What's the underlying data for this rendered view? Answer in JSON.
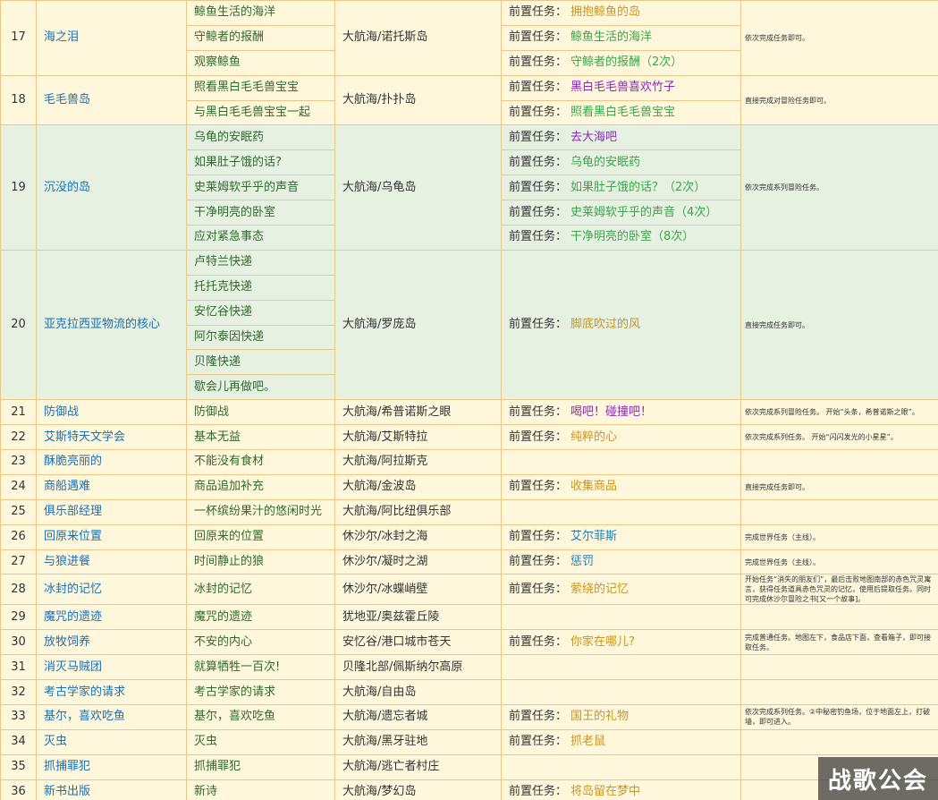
{
  "table": {
    "rows": [
      {
        "no": 17,
        "name": "海之泪",
        "tasks": [
          "鲸鱼生活的海洋",
          "守鲸者的报酬",
          "观察鲸鱼"
        ],
        "location": "大航海/诺托斯岛",
        "prereqs": [
          {
            "label": "前置任务：",
            "value": "拥抱鲸鱼的岛",
            "color": "#c8961e"
          },
          {
            "label": "前置任务：",
            "value": "鲸鱼生活的海洋",
            "color": "#3aa54a"
          },
          {
            "label": "前置任务：",
            "value": "守鲸者的报酬（2次）",
            "color": "#3aa54a"
          }
        ],
        "note": "依次完成任务即可。"
      },
      {
        "no": 18,
        "name": "毛毛兽岛",
        "tasks": [
          "照看黑白毛毛兽宝宝",
          "与黑白毛毛兽宝宝一起"
        ],
        "location": "大航海/扑扑岛",
        "prereqs": [
          {
            "label": "前置任务：",
            "value": "黑白毛毛兽喜欢竹子",
            "color": "#8a2ab8"
          },
          {
            "label": "前置任务：",
            "value": "照看黑白毛毛兽宝宝",
            "color": "#3aa54a"
          }
        ],
        "note": "直接完成对冒险任务即可。"
      },
      {
        "no": 19,
        "name": "沉没的岛",
        "tasks": [
          "乌龟的安眠药",
          "如果肚子饿的话?",
          "史莱姆软乎乎的声音",
          "干净明亮的卧室",
          "应对紧急事态"
        ],
        "location": "大航海/乌龟岛",
        "prereqs": [
          {
            "label": "前置任务：",
            "value": "去大海吧",
            "color": "#8a2ab8"
          },
          {
            "label": "前置任务：",
            "value": "乌龟的安眠药",
            "color": "#3aa54a"
          },
          {
            "label": "前置任务：",
            "value": "如果肚子饿的话？（2次）",
            "color": "#3aa54a"
          },
          {
            "label": "前置任务：",
            "value": "史莱姆软乎乎的声音（4次）",
            "color": "#3aa54a"
          },
          {
            "label": "前置任务：",
            "value": "干净明亮的卧室（8次）",
            "color": "#3aa54a"
          }
        ],
        "note": "依次完成系列冒险任务。",
        "background": "#e6f1e2"
      },
      {
        "no": 20,
        "name": "亚克拉西亚物流的核心",
        "tasks": [
          "卢特兰快递",
          "托托克快递",
          "安忆谷快递",
          "阿尔泰因快递",
          "贝隆快递",
          "歇会儿再做吧。"
        ],
        "location": "大航海/罗庞岛",
        "prereqs": [
          {
            "label": "前置任务：",
            "value": "脚底吹过的风",
            "color": "#c8961e"
          }
        ],
        "note": "直接完成任务即可。",
        "background": "#e6f1e2"
      },
      {
        "no": 21,
        "name": "防御战",
        "tasks": [
          "防御战"
        ],
        "location": "大航海/希普诺斯之眼",
        "prereqs": [
          {
            "label": "前置任务：",
            "value": "喝吧！碰撞吧！",
            "color": "#8a2ab8"
          }
        ],
        "note": "依次完成系列冒险任务。 开始“头条，希普诺斯之眼”。"
      },
      {
        "no": 22,
        "name": "艾斯特天文学会",
        "tasks": [
          "基本无益"
        ],
        "location": "大航海/艾斯特拉",
        "prereqs": [
          {
            "label": "前置任务：",
            "value": "纯粹的心",
            "color": "#c8961e"
          }
        ],
        "note": "依次完成系列任务。 开始“闪闪发光的小星星”。"
      },
      {
        "no": 23,
        "name": "酥脆亮丽的",
        "tasks": [
          "不能没有食材"
        ],
        "location": "大航海/阿拉斯克",
        "prereqs": []
      },
      {
        "no": 24,
        "name": "商船遇难",
        "tasks": [
          "商品追加补充"
        ],
        "location": "大航海/金波岛",
        "prereqs": [
          {
            "label": "前置任务：",
            "value": "收集商品",
            "color": "#c8961e"
          }
        ],
        "note": "直接完成任务即可。"
      },
      {
        "no": 25,
        "name": "俱乐部经理",
        "tasks": [
          "一杯缤纷果汁的悠闲时光"
        ],
        "location": "大航海/阿比纽俱乐部",
        "prereqs": []
      },
      {
        "no": 26,
        "name": "回原来位置",
        "tasks": [
          "回原来的位置"
        ],
        "location": "休沙尔/冰封之海",
        "prereqs": [
          {
            "label": "前置任务：",
            "value": "艾尔菲斯",
            "color": "#1a7fc0"
          }
        ],
        "note": "完成世界任务（主线）。"
      },
      {
        "no": 27,
        "name": "与狼进餐",
        "tasks": [
          "时间静止的狼"
        ],
        "location": "休沙尔/凝时之湖",
        "prereqs": [
          {
            "label": "前置任务：",
            "value": "惩罚",
            "color": "#1a7fc0"
          }
        ],
        "note": "完成世界任务（主线）。"
      },
      {
        "no": 28,
        "name": "冰封的记忆",
        "tasks": [
          "冰封的记忆"
        ],
        "location": "休沙尔/冰蝶峭壁",
        "prereqs": [
          {
            "label": "前置任务：",
            "value": "萦绕的记忆",
            "color": "#c8961e"
          }
        ],
        "note": "开始任务“消失的朋友们”，最后击败地图南部的赤色咒灵寓言，获得任务道具赤色咒灵的记忆，使用后提取任务。同时可完成休沙尔冒险之书[又一个故事]。"
      },
      {
        "no": 29,
        "name": "魔咒的遗迹",
        "tasks": [
          "魔咒的遗迹"
        ],
        "location": "犹地亚/奥兹霍丘陵",
        "prereqs": []
      },
      {
        "no": 30,
        "name": "放牧饲养",
        "tasks": [
          "不安的内心"
        ],
        "location": "安忆谷/港口城市苍天",
        "prereqs": [
          {
            "label": "前置任务：",
            "value": "你家在哪儿?",
            "color": "#c8961e"
          }
        ],
        "note": "完成普通任务。地图左下，食品店下面，查看箱子，即可接取任务。"
      },
      {
        "no": 31,
        "name": "消灭马贼团",
        "tasks": [
          "就算牺牲一百次!"
        ],
        "location": "贝隆北部/佩斯纳尔高原",
        "prereqs": []
      },
      {
        "no": 32,
        "name": "考古学家的请求",
        "tasks": [
          "考古学家的请求"
        ],
        "location": "大航海/自由岛",
        "prereqs": []
      },
      {
        "no": 33,
        "name": "基尔，喜欢吃鱼",
        "tasks": [
          "基尔，喜欢吃鱼"
        ],
        "location": "大航海/遗忘者城",
        "prereqs": [
          {
            "label": "前置任务：",
            "value": "国王的礼物",
            "color": "#c8961e"
          }
        ],
        "note": "依次完成系列任务。②中秘密钓鱼场，位于地面左上，打破墙，即可进入。"
      },
      {
        "no": 34,
        "name": "灭虫",
        "tasks": [
          "灭虫"
        ],
        "location": "大航海/黑牙驻地",
        "prereqs": [
          {
            "label": "前置任务：",
            "value": "抓老鼠",
            "color": "#c8961e"
          }
        ]
      },
      {
        "no": 35,
        "name": "抓捕罪犯",
        "tasks": [
          "抓捕罪犯"
        ],
        "location": "大航海/逃亡者村庄",
        "prereqs": []
      },
      {
        "no": 36,
        "name": "新书出版",
        "tasks": [
          "新诗"
        ],
        "location": "大航海/梦幻岛",
        "prereqs": [
          {
            "label": "前置任务：",
            "value": "将岛留在梦中",
            "color": "#c8961e"
          }
        ]
      }
    ]
  },
  "watermark": "战歌公会"
}
